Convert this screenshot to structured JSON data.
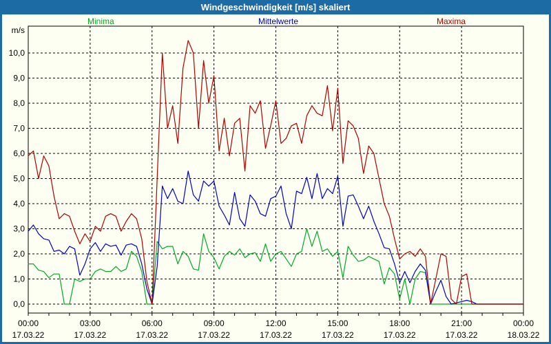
{
  "window": {
    "title": "Windgeschwindigkeit [m/s] skaliert"
  },
  "colors": {
    "title_bar": "#1d6ba4",
    "frame_border": "#1d6ba4",
    "background": "#fcfff2",
    "grid": "#000000",
    "axis_text": "#000000"
  },
  "chart_data": {
    "type": "line",
    "title": "Windgeschwindigkeit [m/s] skaliert",
    "ylabel": "m/s",
    "legend_position": "top",
    "grid": "black dashed; horizontal every 1 m/s, vertical every 3 h, hourly ticks on x-axis",
    "x_start_hour": 0,
    "x_end_hour": 24,
    "sample_interval_minutes": 15,
    "ylim": [
      -0.4,
      11.1
    ],
    "y_tick_labels": [
      "0,0",
      "1,0",
      "2,0",
      "3,0",
      "4,0",
      "5,0",
      "6,0",
      "7,0",
      "8,0",
      "9,0",
      "10,0"
    ],
    "x_ticks": [
      {
        "time": "00:00",
        "date": "17.03.22"
      },
      {
        "time": "03:00",
        "date": "17.03.22"
      },
      {
        "time": "06:00",
        "date": "17.03.22"
      },
      {
        "time": "09:00",
        "date": "17.03.22"
      },
      {
        "time": "12:00",
        "date": "17.03.22"
      },
      {
        "time": "15:00",
        "date": "17.03.22"
      },
      {
        "time": "18:00",
        "date": "17.03.22"
      },
      {
        "time": "21:00",
        "date": "17.03.22"
      },
      {
        "time": "00:00",
        "date": "18.03.22"
      }
    ],
    "series": [
      {
        "name": "Minima",
        "color": "#00aa22",
        "values": [
          1.6,
          1.6,
          1.35,
          1.3,
          1.05,
          1.2,
          1.2,
          0,
          0,
          1.0,
          0.9,
          1.0,
          1.0,
          1.3,
          1.4,
          1.3,
          1.3,
          1.5,
          1.3,
          1.4,
          2.1,
          1.9,
          1.3,
          0,
          0,
          2.5,
          2.2,
          2.3,
          2.3,
          1.6,
          2.1,
          1.9,
          1.4,
          1.35,
          2.8,
          2.1,
          1.85,
          1.4,
          1.9,
          2.1,
          1.95,
          2.2,
          1.85,
          2.0,
          2.05,
          1.7,
          2.4,
          1.7,
          2.0,
          2.1,
          1.8,
          1.5,
          2.0,
          2.1,
          3.0,
          2.3,
          2.9,
          2.1,
          2.2,
          1.9,
          2.1,
          1.05,
          2.3,
          1.95,
          1.7,
          1.75,
          1.9,
          1.8,
          1.7,
          0.8,
          1.45,
          1.2,
          0.2,
          1.0,
          0,
          1.0,
          1.3,
          1.25,
          0,
          0,
          0,
          0,
          0,
          0,
          0,
          0,
          0,
          0,
          0,
          0,
          0,
          0,
          0,
          0,
          0,
          0,
          0
        ]
      },
      {
        "name": "Mittelwerte",
        "color": "#0000c8",
        "values": [
          2.9,
          3.15,
          2.8,
          2.6,
          2.55,
          2.1,
          2.15,
          2.0,
          2.3,
          2.2,
          1.15,
          1.6,
          2.2,
          2.45,
          2.1,
          2.4,
          2.3,
          2.35,
          1.95,
          2.35,
          2.4,
          2.3,
          1.6,
          0.6,
          0,
          1.5,
          4.7,
          4.2,
          4.6,
          4.1,
          4.0,
          5.3,
          4.35,
          4.1,
          4.9,
          4.7,
          4.9,
          3.9,
          3.55,
          3.15,
          4.45,
          3.4,
          3.1,
          4.35,
          4.1,
          3.6,
          3.5,
          4.2,
          4.3,
          4.7,
          3.6,
          3.0,
          4.5,
          4.4,
          5.05,
          4.2,
          5.2,
          4.2,
          4.6,
          4.4,
          5.1,
          3.1,
          4.3,
          4.35,
          3.9,
          3.4,
          3.9,
          3.3,
          2.8,
          2.25,
          2.2,
          1.6,
          0.85,
          1.3,
          0.85,
          1.3,
          1.6,
          1.35,
          0,
          0.5,
          0.95,
          0.3,
          0,
          0.05,
          0.1,
          0.15,
          0.1,
          0,
          0,
          0,
          0,
          0,
          0,
          0,
          0,
          0,
          0
        ]
      },
      {
        "name": "Maxima",
        "color": "#b00000",
        "values": [
          5.9,
          6.1,
          5.0,
          5.9,
          5.5,
          4.3,
          3.4,
          3.6,
          3.5,
          2.9,
          2.4,
          2.8,
          2.5,
          3.1,
          2.9,
          3.5,
          3.6,
          3.5,
          2.9,
          3.3,
          3.6,
          3.4,
          2.6,
          0.9,
          0,
          5.0,
          10.0,
          7.0,
          7.9,
          6.4,
          9.4,
          10.5,
          10.0,
          7.0,
          9.7,
          8.0,
          9.1,
          6.1,
          7.4,
          5.9,
          7.2,
          7.4,
          5.3,
          7.9,
          7.6,
          8.1,
          6.2,
          7.1,
          8.1,
          6.4,
          6.6,
          7.1,
          7.2,
          6.4,
          7.5,
          7.9,
          7.6,
          7.5,
          8.7,
          6.9,
          8.6,
          5.6,
          7.3,
          7.1,
          6.6,
          5.2,
          6.3,
          6.0,
          5.0,
          4.0,
          3.5,
          2.6,
          1.8,
          2.0,
          2.1,
          1.9,
          2.2,
          1.9,
          0,
          1.0,
          2.0,
          1.9,
          0.2,
          0,
          1.1,
          1.2,
          0,
          0,
          0,
          0,
          0,
          0,
          0,
          0,
          0,
          0,
          0
        ]
      }
    ]
  }
}
